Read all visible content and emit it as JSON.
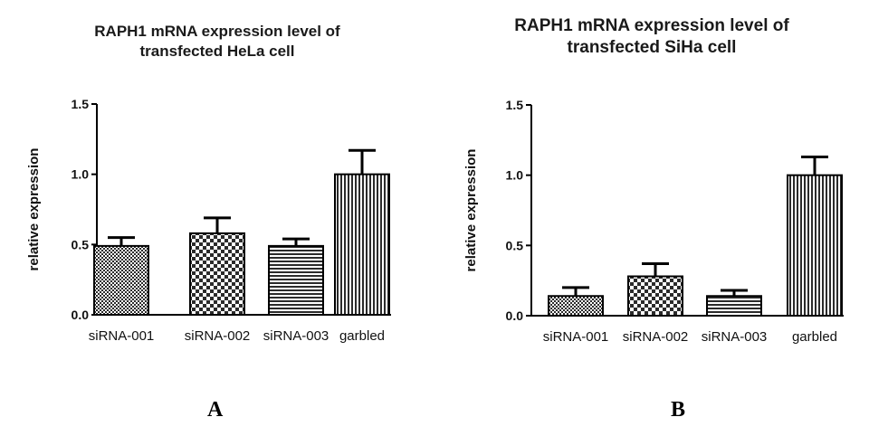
{
  "panels": [
    {
      "title_line1": "RAPH1 mRNA expression level of",
      "title_line2": "transfected HeLa cell",
      "letter": "A"
    },
    {
      "title_line1": "RAPH1 mRNA expression level of",
      "title_line2": "transfected SiHa cell",
      "letter": "B"
    }
  ],
  "chart_data": [
    {
      "type": "bar",
      "title": "RAPH1 mRNA expression level of transfected HeLa cell",
      "xlabel": "",
      "ylabel": "relative expression",
      "categories": [
        "siRNA-001",
        "siRNA-002",
        "siRNA-003",
        "garbled"
      ],
      "values": [
        0.49,
        0.58,
        0.49,
        1.0
      ],
      "error_upper": [
        0.06,
        0.11,
        0.05,
        0.17
      ],
      "ylim": [
        0,
        1.5
      ],
      "yticks": [
        "0.0",
        "0.5",
        "1.0",
        "1.5"
      ],
      "bar_patterns": [
        "checker-small",
        "checker-large",
        "horizontal-lines",
        "vertical-lines"
      ],
      "grid": false,
      "colors": {
        "bar_edge": "#000000",
        "pattern_dark": "#2b2b2b",
        "pattern_light": "#ffffff"
      }
    },
    {
      "type": "bar",
      "title": "RAPH1 mRNA expression level of transfected SiHa cell",
      "xlabel": "",
      "ylabel": "relative expression",
      "categories": [
        "siRNA-001",
        "siRNA-002",
        "siRNA-003",
        "garbled"
      ],
      "values": [
        0.14,
        0.28,
        0.14,
        1.0
      ],
      "error_upper": [
        0.06,
        0.09,
        0.04,
        0.13
      ],
      "ylim": [
        0,
        1.5
      ],
      "yticks": [
        "0.0",
        "0.5",
        "1.0",
        "1.5"
      ],
      "bar_patterns": [
        "checker-small",
        "checker-large",
        "horizontal-lines",
        "vertical-lines"
      ],
      "grid": false,
      "colors": {
        "bar_edge": "#000000",
        "pattern_dark": "#2b2b2b",
        "pattern_light": "#ffffff"
      }
    }
  ]
}
